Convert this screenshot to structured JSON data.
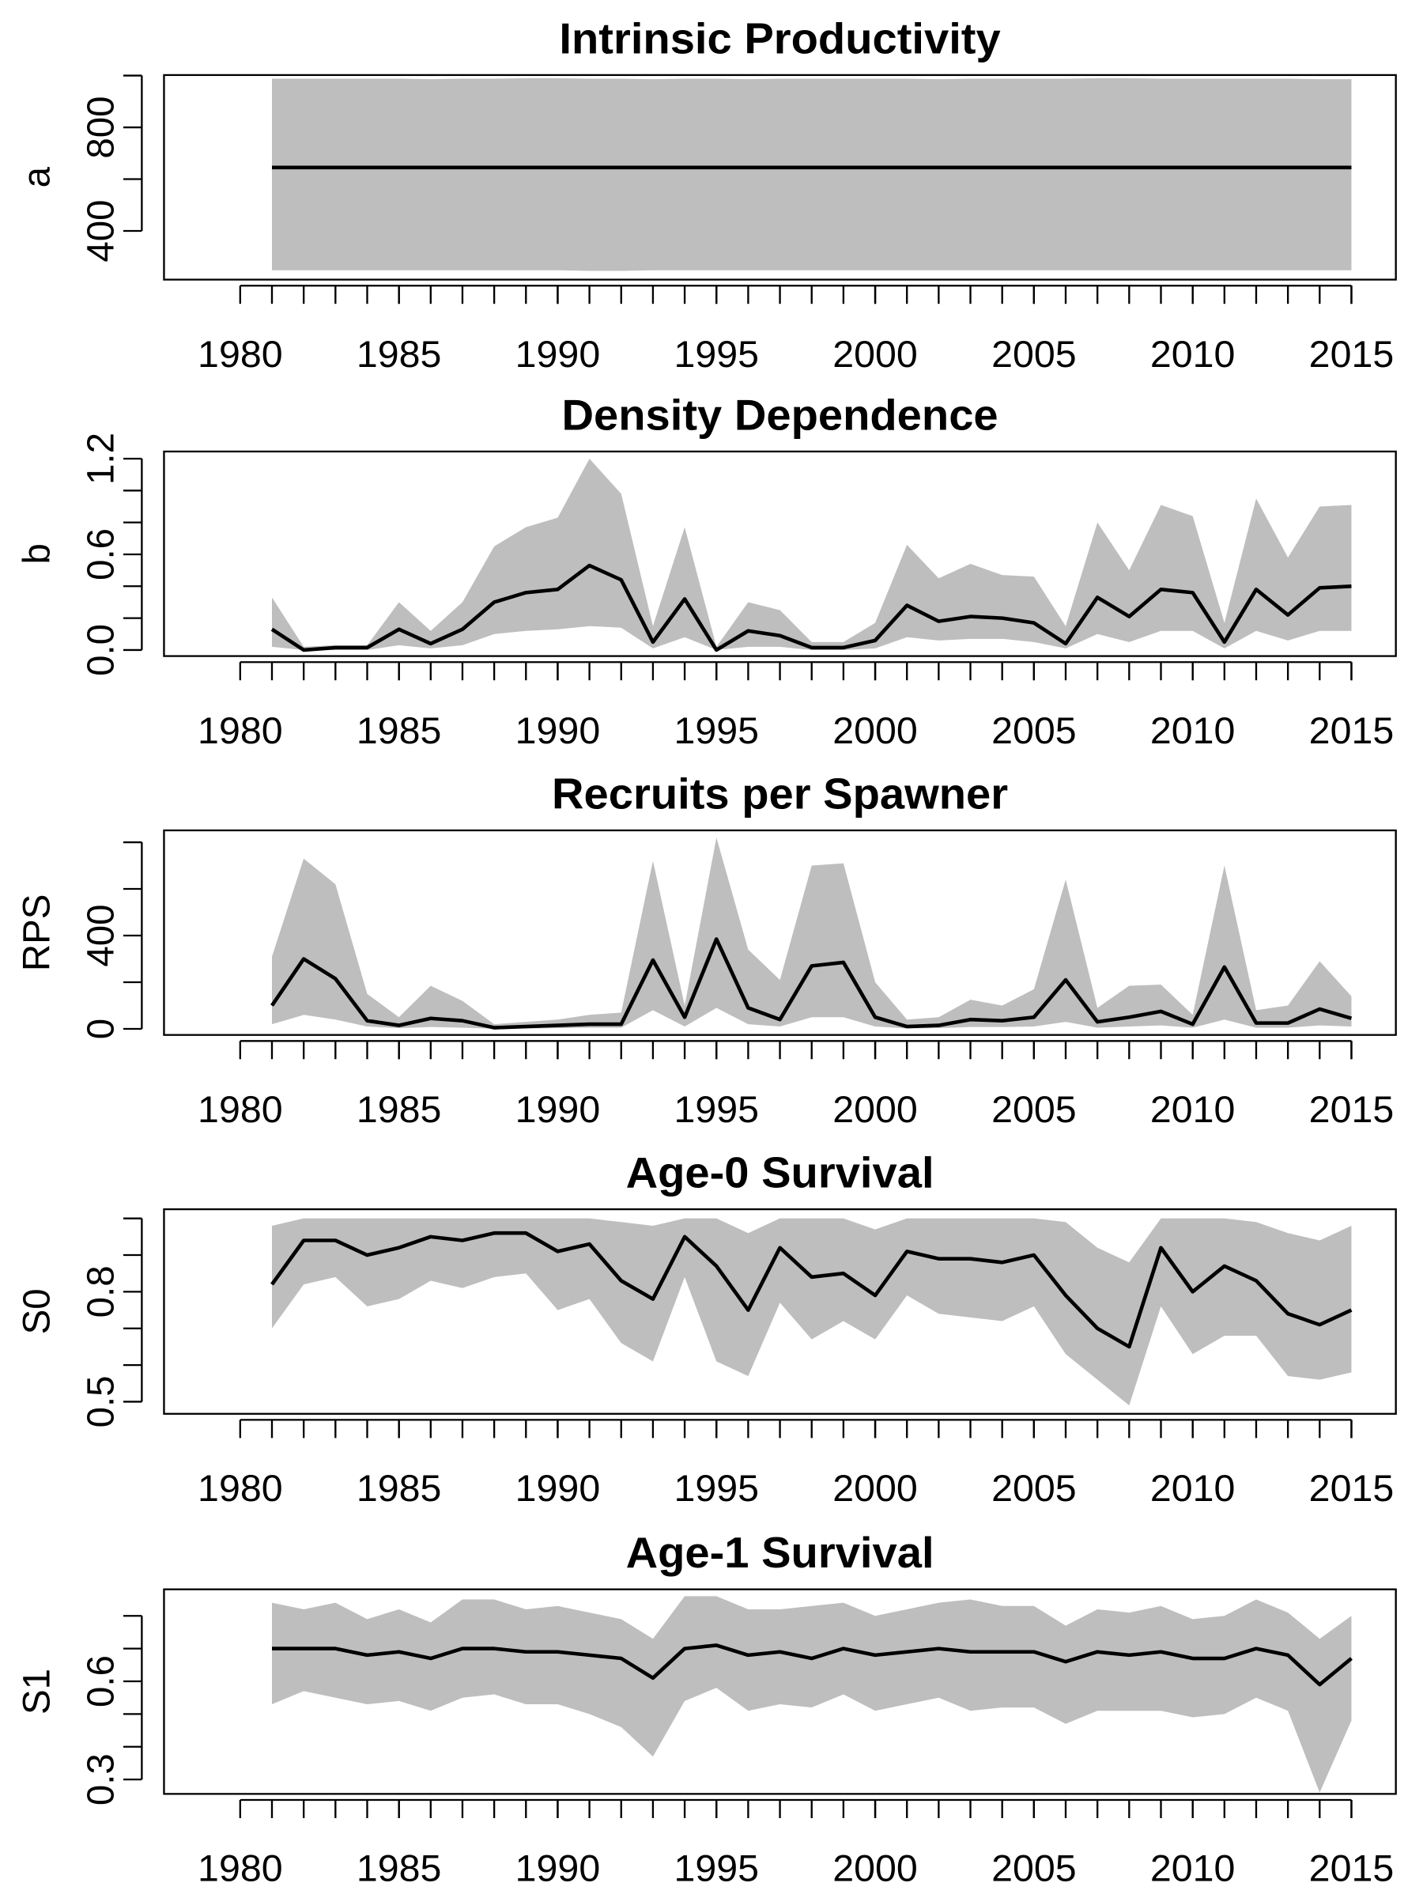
{
  "chart_data": [
    {
      "type": "line",
      "title": "Intrinsic Productivity",
      "ylabel": "a",
      "x": [
        1981,
        1982,
        1983,
        1984,
        1985,
        1986,
        1987,
        1988,
        1989,
        1990,
        1991,
        1992,
        1993,
        1994,
        1995,
        1996,
        1997,
        1998,
        1999,
        2000,
        2001,
        2002,
        2003,
        2004,
        2005,
        2006,
        2007,
        2008,
        2009,
        2010,
        2011,
        2012,
        2013,
        2014,
        2015
      ],
      "values": [
        645,
        645,
        645,
        645,
        645,
        645,
        645,
        645,
        645,
        645,
        645,
        645,
        645,
        645,
        645,
        645,
        645,
        645,
        645,
        645,
        645,
        645,
        645,
        645,
        645,
        645,
        645,
        645,
        645,
        645,
        645,
        645,
        645,
        645,
        645
      ],
      "lower": [
        248,
        248,
        248,
        248,
        248,
        248,
        248,
        248,
        248,
        248,
        246,
        246,
        248,
        248,
        248,
        248,
        248,
        248,
        248,
        248,
        248,
        248,
        248,
        248,
        248,
        248,
        248,
        248,
        248,
        248,
        248,
        248,
        248,
        248,
        248
      ],
      "upper": [
        988,
        988,
        988,
        988,
        988,
        986,
        988,
        988,
        990,
        990,
        988,
        988,
        986,
        988,
        988,
        986,
        988,
        988,
        988,
        988,
        988,
        986,
        988,
        988,
        988,
        988,
        990,
        990,
        988,
        988,
        988,
        988,
        988,
        986,
        986
      ],
      "color": "#000000",
      "band_color": "#bebebe",
      "xlim": [
        1977.6,
        2016.4
      ],
      "xticks": [
        1980,
        1985,
        1990,
        1995,
        2000,
        2005,
        2010,
        2015
      ],
      "ylim": [
        212,
        1002
      ],
      "yticks": [
        400,
        800
      ],
      "yminor": [
        600,
        1000
      ]
    },
    {
      "type": "line",
      "title": "Density Dependence",
      "ylabel": "b",
      "x": [
        1981,
        1982,
        1983,
        1984,
        1985,
        1986,
        1987,
        1988,
        1989,
        1990,
        1991,
        1992,
        1993,
        1994,
        1995,
        1996,
        1997,
        1998,
        1999,
        2000,
        2001,
        2002,
        2003,
        2004,
        2005,
        2006,
        2007,
        2008,
        2009,
        2010,
        2011,
        2012,
        2013,
        2014,
        2015
      ],
      "values": [
        0.13,
        0.0,
        0.015,
        0.015,
        0.13,
        0.04,
        0.13,
        0.3,
        0.36,
        0.38,
        0.53,
        0.44,
        0.05,
        0.32,
        0.0,
        0.12,
        0.09,
        0.015,
        0.015,
        0.06,
        0.28,
        0.18,
        0.21,
        0.2,
        0.17,
        0.04,
        0.33,
        0.21,
        0.38,
        0.36,
        0.05,
        0.38,
        0.22,
        0.39,
        0.4
      ],
      "lower": [
        0.02,
        0.0,
        0.0,
        0.0,
        0.03,
        0.01,
        0.03,
        0.1,
        0.12,
        0.13,
        0.15,
        0.14,
        0.01,
        0.08,
        0.0,
        0.02,
        0.02,
        0.0,
        0.0,
        0.01,
        0.08,
        0.06,
        0.07,
        0.07,
        0.05,
        0.01,
        0.1,
        0.05,
        0.12,
        0.12,
        0.01,
        0.12,
        0.06,
        0.12,
        0.12
      ],
      "upper": [
        0.33,
        0.02,
        0.03,
        0.03,
        0.3,
        0.12,
        0.3,
        0.65,
        0.77,
        0.83,
        1.2,
        0.98,
        0.15,
        0.77,
        0.02,
        0.3,
        0.25,
        0.05,
        0.05,
        0.17,
        0.66,
        0.45,
        0.54,
        0.47,
        0.46,
        0.15,
        0.8,
        0.5,
        0.91,
        0.84,
        0.17,
        0.95,
        0.58,
        0.9,
        0.91
      ],
      "color": "#000000",
      "band_color": "#bebebe",
      "xlim": [
        1977.6,
        2016.4
      ],
      "xticks": [
        1980,
        1985,
        1990,
        1995,
        2000,
        2005,
        2010,
        2015
      ],
      "ylim": [
        -0.038,
        1.245
      ],
      "yticks": [
        {
          "value": 0,
          "label": "0.0"
        },
        0.6,
        1.2
      ],
      "yminor": [
        0.2,
        0.4,
        0.8,
        1.0
      ]
    },
    {
      "type": "line",
      "title": "Recruits per Spawner",
      "ylabel": "RPS",
      "x": [
        1981,
        1982,
        1983,
        1984,
        1985,
        1986,
        1987,
        1988,
        1989,
        1990,
        1991,
        1992,
        1993,
        1994,
        1995,
        1996,
        1997,
        1998,
        1999,
        2000,
        2001,
        2002,
        2003,
        2004,
        2005,
        2006,
        2007,
        2008,
        2009,
        2010,
        2011,
        2012,
        2013,
        2014,
        2015
      ],
      "values": [
        100,
        300,
        215,
        35,
        15,
        45,
        35,
        5,
        10,
        15,
        20,
        20,
        295,
        50,
        385,
        90,
        40,
        270,
        285,
        50,
        10,
        15,
        40,
        35,
        50,
        210,
        30,
        50,
        75,
        20,
        265,
        25,
        25,
        85,
        45
      ],
      "lower": [
        20,
        60,
        40,
        10,
        3,
        8,
        5,
        1,
        2,
        3,
        5,
        5,
        80,
        10,
        90,
        20,
        10,
        50,
        50,
        10,
        2,
        3,
        8,
        8,
        10,
        30,
        5,
        10,
        15,
        5,
        40,
        5,
        5,
        15,
        10
      ],
      "upper": [
        310,
        730,
        620,
        150,
        50,
        185,
        120,
        20,
        30,
        40,
        60,
        70,
        720,
        100,
        820,
        340,
        210,
        700,
        710,
        200,
        40,
        50,
        125,
        100,
        170,
        640,
        90,
        185,
        190,
        60,
        700,
        80,
        100,
        290,
        140
      ],
      "color": "#000000",
      "band_color": "#bebebe",
      "xlim": [
        1977.6,
        2016.4
      ],
      "xticks": [
        1980,
        1985,
        1990,
        1995,
        2000,
        2005,
        2010,
        2015
      ],
      "ylim": [
        -26,
        851
      ],
      "yticks": [
        0,
        400
      ],
      "yminor": [
        200,
        600,
        800
      ]
    },
    {
      "type": "line",
      "title": "Age-0 Survival",
      "ylabel": "S0",
      "x": [
        1981,
        1982,
        1983,
        1984,
        1985,
        1986,
        1987,
        1988,
        1989,
        1990,
        1991,
        1992,
        1993,
        1994,
        1995,
        1996,
        1997,
        1998,
        1999,
        2000,
        2001,
        2002,
        2003,
        2004,
        2005,
        2006,
        2007,
        2008,
        2009,
        2010,
        2011,
        2012,
        2013,
        2014,
        2015
      ],
      "values": [
        0.82,
        0.94,
        0.94,
        0.9,
        0.92,
        0.95,
        0.94,
        0.96,
        0.96,
        0.91,
        0.93,
        0.83,
        0.78,
        0.95,
        0.87,
        0.75,
        0.92,
        0.84,
        0.85,
        0.79,
        0.91,
        0.89,
        0.89,
        0.88,
        0.9,
        0.79,
        0.7,
        0.65,
        0.92,
        0.8,
        0.87,
        0.83,
        0.74,
        0.71,
        0.75
      ],
      "lower": [
        0.7,
        0.82,
        0.84,
        0.76,
        0.78,
        0.83,
        0.81,
        0.84,
        0.85,
        0.75,
        0.78,
        0.66,
        0.61,
        0.84,
        0.61,
        0.57,
        0.77,
        0.67,
        0.72,
        0.67,
        0.79,
        0.74,
        0.73,
        0.72,
        0.76,
        0.63,
        0.56,
        0.49,
        0.76,
        0.63,
        0.68,
        0.68,
        0.57,
        0.56,
        0.58
      ],
      "upper": [
        0.98,
        1.0,
        1.0,
        1.0,
        1.0,
        1.0,
        1.0,
        1.0,
        1.0,
        1.0,
        1.0,
        0.99,
        0.98,
        1.0,
        1.0,
        0.96,
        1.0,
        1.0,
        1.0,
        0.97,
        1.0,
        1.0,
        1.0,
        1.0,
        1.0,
        0.99,
        0.92,
        0.88,
        1.0,
        1.0,
        1.0,
        0.99,
        0.96,
        0.94,
        0.98
      ],
      "color": "#000000",
      "band_color": "#bebebe",
      "xlim": [
        1977.6,
        2016.4
      ],
      "xticks": [
        1980,
        1985,
        1990,
        1995,
        2000,
        2005,
        2010,
        2015
      ],
      "ylim": [
        0.467,
        1.025
      ],
      "yticks": [
        0.5,
        0.8
      ],
      "yminor": [
        0.6,
        0.7,
        0.9,
        1.0
      ]
    },
    {
      "type": "line",
      "title": "Age-1 Survival",
      "ylabel": "S1",
      "x": [
        1981,
        1982,
        1983,
        1984,
        1985,
        1986,
        1987,
        1988,
        1989,
        1990,
        1991,
        1992,
        1993,
        1994,
        1995,
        1996,
        1997,
        1998,
        1999,
        2000,
        2001,
        2002,
        2003,
        2004,
        2005,
        2006,
        2007,
        2008,
        2009,
        2010,
        2011,
        2012,
        2013,
        2014,
        2015
      ],
      "values": [
        0.7,
        0.7,
        0.7,
        0.68,
        0.69,
        0.67,
        0.7,
        0.7,
        0.69,
        0.69,
        0.68,
        0.67,
        0.61,
        0.7,
        0.71,
        0.68,
        0.69,
        0.67,
        0.7,
        0.68,
        0.69,
        0.7,
        0.69,
        0.69,
        0.69,
        0.66,
        0.69,
        0.68,
        0.69,
        0.67,
        0.67,
        0.7,
        0.68,
        0.59,
        0.67
      ],
      "lower": [
        0.53,
        0.57,
        0.55,
        0.53,
        0.54,
        0.51,
        0.55,
        0.56,
        0.53,
        0.53,
        0.5,
        0.46,
        0.37,
        0.54,
        0.58,
        0.51,
        0.53,
        0.52,
        0.56,
        0.51,
        0.53,
        0.55,
        0.51,
        0.52,
        0.52,
        0.47,
        0.51,
        0.51,
        0.51,
        0.49,
        0.5,
        0.55,
        0.51,
        0.26,
        0.48
      ],
      "upper": [
        0.84,
        0.82,
        0.84,
        0.79,
        0.82,
        0.78,
        0.85,
        0.85,
        0.82,
        0.83,
        0.81,
        0.79,
        0.73,
        0.86,
        0.86,
        0.82,
        0.82,
        0.83,
        0.84,
        0.8,
        0.82,
        0.84,
        0.85,
        0.83,
        0.83,
        0.77,
        0.82,
        0.81,
        0.83,
        0.79,
        0.8,
        0.85,
        0.81,
        0.73,
        0.8
      ],
      "color": "#000000",
      "band_color": "#bebebe",
      "xlim": [
        1977.6,
        2016.4
      ],
      "xticks": [
        1980,
        1985,
        1990,
        1995,
        2000,
        2005,
        2010,
        2015
      ],
      "ylim": [
        0.256,
        0.881
      ],
      "yticks": [
        0.3,
        0.6
      ],
      "yminor": [
        0.4,
        0.5,
        0.7,
        0.8
      ]
    }
  ]
}
